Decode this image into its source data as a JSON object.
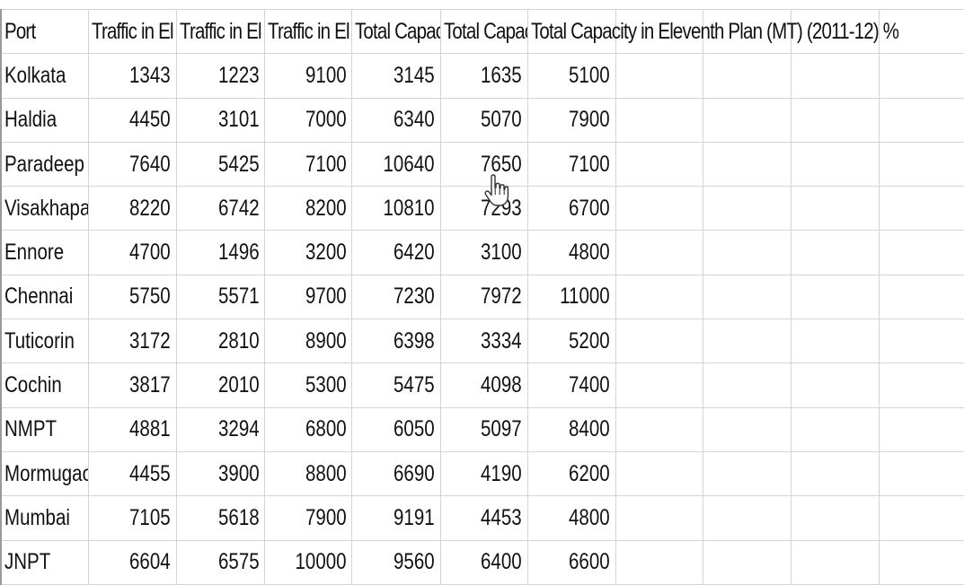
{
  "headers": [
    "Port",
    "Traffic in El",
    "Traffic in El",
    "Traffic in El",
    "Total Capac",
    "Total Capac",
    "Total Capacity  in Eleventh Plan (MT) (2011-12) %"
  ],
  "rows": [
    {
      "port": "Kolkata",
      "values": [
        "1343",
        "1223",
        "9100",
        "3145",
        "1635",
        "5100"
      ]
    },
    {
      "port": "Haldia",
      "values": [
        "4450",
        "3101",
        "7000",
        "6340",
        "5070",
        "7900"
      ]
    },
    {
      "port": "Paradeep",
      "values": [
        "7640",
        "5425",
        "7100",
        "10640",
        "7650",
        "7100"
      ]
    },
    {
      "port": "Visakhapat",
      "values": [
        "8220",
        "6742",
        "8200",
        "10810",
        "7293",
        "6700"
      ]
    },
    {
      "port": "Ennore",
      "values": [
        "4700",
        "1496",
        "3200",
        "6420",
        "3100",
        "4800"
      ]
    },
    {
      "port": "Chennai",
      "values": [
        "5750",
        "5571",
        "9700",
        "7230",
        "7972",
        "11000"
      ]
    },
    {
      "port": "Tuticorin",
      "values": [
        "3172",
        "2810",
        "8900",
        "6398",
        "3334",
        "5200"
      ]
    },
    {
      "port": "Cochin",
      "values": [
        "3817",
        "2010",
        "5300",
        "5475",
        "4098",
        "7400"
      ]
    },
    {
      "port": "NMPT",
      "values": [
        "4881",
        "3294",
        "6800",
        "6050",
        "5097",
        "8400"
      ]
    },
    {
      "port": "Mormugao",
      "values": [
        "4455",
        "3900",
        "8800",
        "6690",
        "4190",
        "6200"
      ]
    },
    {
      "port": "Mumbai",
      "values": [
        "7105",
        "5618",
        "7900",
        "9191",
        "4453",
        "4800"
      ]
    },
    {
      "port": "JNPT",
      "values": [
        "6604",
        "6575",
        "10000",
        "9560",
        "6400",
        "6600"
      ]
    }
  ],
  "cursor": {
    "icon": "hand-pointer-icon"
  }
}
